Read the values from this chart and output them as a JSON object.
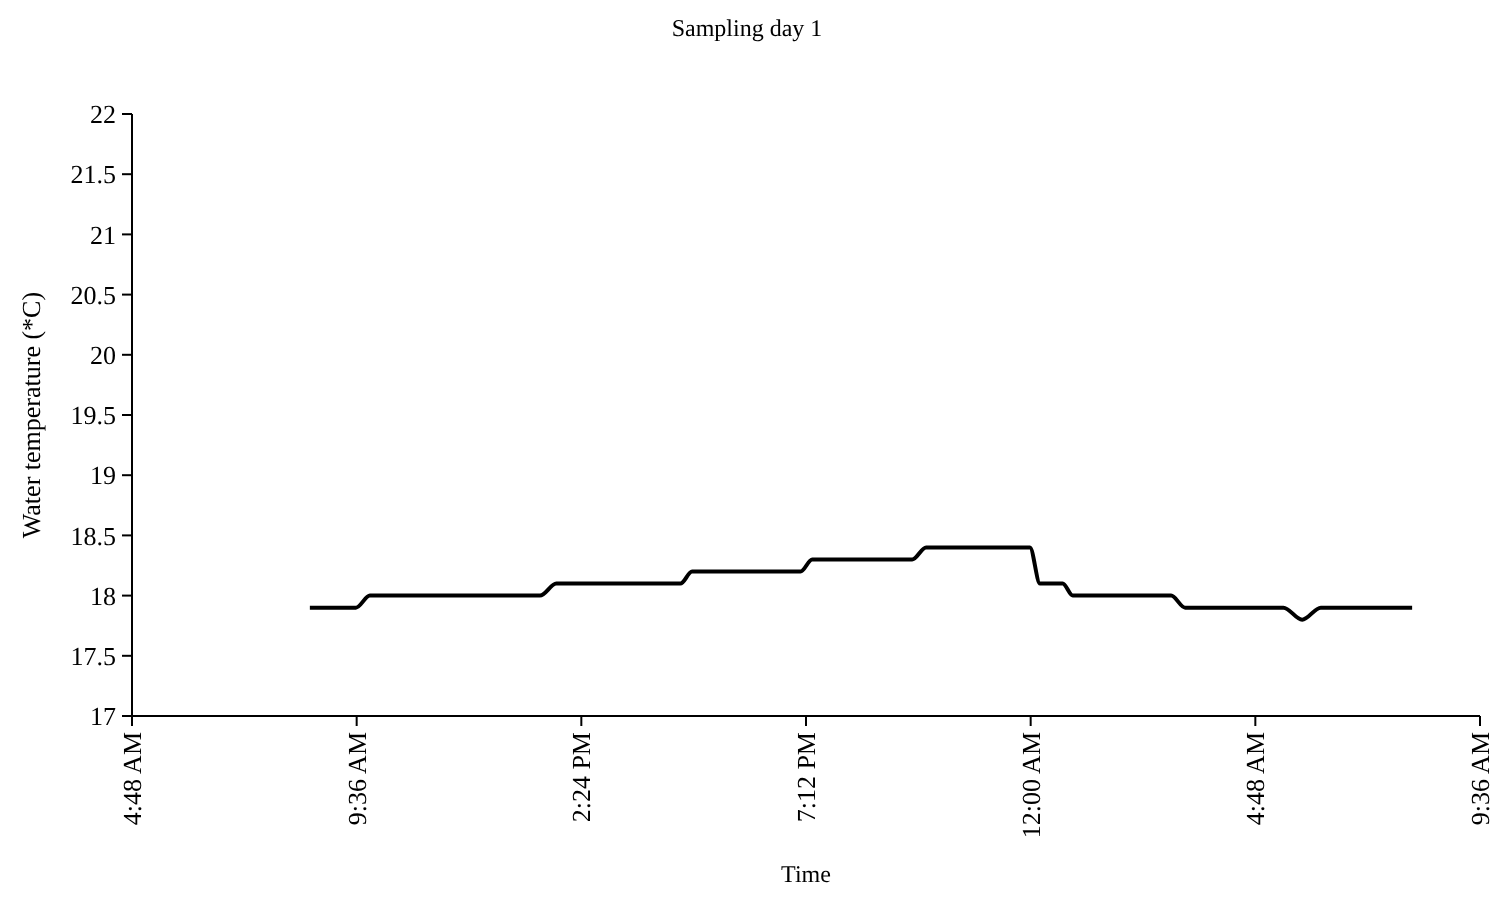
{
  "chart_data": {
    "type": "line",
    "title": "Sampling day 1",
    "xlabel": "Time",
    "ylabel": "Water temperature (*C)",
    "xlim": [
      "2000-01-01T04:48",
      "2000-01-02T09:36"
    ],
    "xticks": [
      {
        "value": "2000-01-01T04:48",
        "label": "4:48 AM"
      },
      {
        "value": "2000-01-01T09:36",
        "label": "9:36 AM"
      },
      {
        "value": "2000-01-01T14:24",
        "label": "2:24 PM"
      },
      {
        "value": "2000-01-01T19:12",
        "label": "7:12 PM"
      },
      {
        "value": "2000-01-02T00:00",
        "label": "12:00 AM"
      },
      {
        "value": "2000-01-02T04:48",
        "label": "4:48 AM"
      },
      {
        "value": "2000-01-02T09:36",
        "label": "9:36 AM"
      }
    ],
    "ylim": [
      17,
      22
    ],
    "yticks": [
      17,
      17.5,
      18,
      18.5,
      19,
      19.5,
      20,
      20.5,
      21,
      21.5,
      22
    ],
    "grid": false,
    "marker": "none",
    "line_style": "solid",
    "series": [
      {
        "color": "#000000",
        "x": [
          "2000-01-01T08:36",
          "2000-01-01T09:35",
          "2000-01-01T09:53",
          "2000-01-01T13:31",
          "2000-01-01T13:52",
          "2000-01-01T16:31",
          "2000-01-01T16:46",
          "2000-01-01T19:05",
          "2000-01-01T19:20",
          "2000-01-01T21:28",
          "2000-01-01T21:46",
          "2000-01-01T23:52",
          "2000-01-01T23:59",
          "2000-01-02T00:12",
          "2000-01-02T00:41",
          "2000-01-02T00:54",
          "2000-01-02T03:00",
          "2000-01-02T03:18",
          "2000-01-02T05:24",
          "2000-01-02T05:48",
          "2000-01-02T06:12",
          "2000-01-02T08:09"
        ],
        "values": [
          17.9,
          17.9,
          18.0,
          18.0,
          18.1,
          18.1,
          18.2,
          18.2,
          18.3,
          18.3,
          18.4,
          18.4,
          18.4,
          18.1,
          18.1,
          18.0,
          18.0,
          17.9,
          17.9,
          17.8,
          17.9,
          17.9
        ]
      }
    ]
  }
}
